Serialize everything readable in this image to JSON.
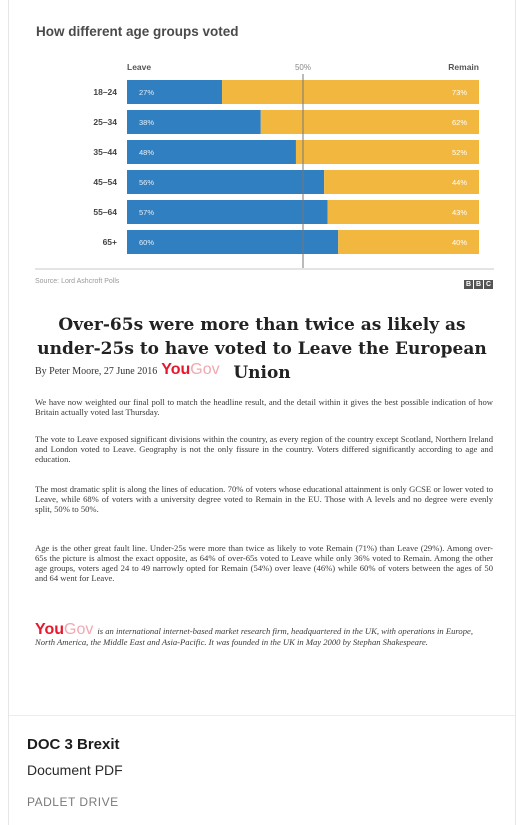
{
  "chart_data": {
    "type": "bar",
    "stacked": true,
    "orientation": "horizontal",
    "title": "How different age groups voted",
    "categories": [
      "18–24",
      "25–34",
      "35–44",
      "45–54",
      "55–64",
      "65+"
    ],
    "series": [
      {
        "name": "Leave",
        "values": [
          27,
          38,
          48,
          56,
          57,
          60
        ],
        "labels": [
          "27%",
          "38%",
          "48%",
          "56%",
          "57%",
          "60%"
        ],
        "color": "#2f7fc1"
      },
      {
        "name": "Remain",
        "values": [
          73,
          62,
          52,
          44,
          43,
          40
        ],
        "labels": [
          "73%",
          "62%",
          "52%",
          "44%",
          "43%",
          "40%"
        ],
        "color": "#f2b73f"
      }
    ],
    "midline_label": "50%",
    "xlim": [
      0,
      100
    ]
  },
  "source_text": "Source: Lord Ashcroft Polls",
  "bbc_letters": [
    "B",
    "B",
    "C"
  ],
  "article": {
    "headline": "Over-65s were more than twice as likely as under-25s to have voted to Leave the European Union",
    "byline": "By Peter Moore, 27 June 2016",
    "logo": {
      "you": "You",
      "gov": "Gov"
    },
    "paragraphs": [
      "We have now weighted our final poll to match the headline result, and the detail within it gives the best possible indication of how Britain actually voted last Thursday.",
      "The vote to Leave exposed significant divisions within the country, as every region of the country except Scotland, Northern Ireland and London voted to Leave. Geography is not the only fissure in the country. Voters differed significantly according to age and education.",
      "The most dramatic split is along the lines of education. 70% of voters whose educational attainment is only GCSE or lower voted to Leave, while 68% of voters with a university degree voted to Remain in the EU. Those with A levels and no degree were evenly split, 50% to 50%.",
      "Age is the other great fault line. Under-25s were more than twice as likely to vote Remain (71%) than Leave (29%). Among over-65s the picture is almost the exact opposite, as 64% of over-65s voted to Leave while only 36% voted to Remain. Among the other age groups, voters aged 24 to 49 narrowly opted for Remain (54%) over leave (46%) while 60% of voters between the ages of 50 and 64 went for Leave."
    ],
    "about": "is an international internet-based market research firm, headquartered in the UK, with operations in Europe, North America, the Middle East and Asia-Pacific. It was founded in the UK in May 2000 by Stephan Shakespeare."
  },
  "card": {
    "title": "DOC 3 Brexit",
    "type": "Document PDF",
    "source": "PADLET DRIVE"
  }
}
